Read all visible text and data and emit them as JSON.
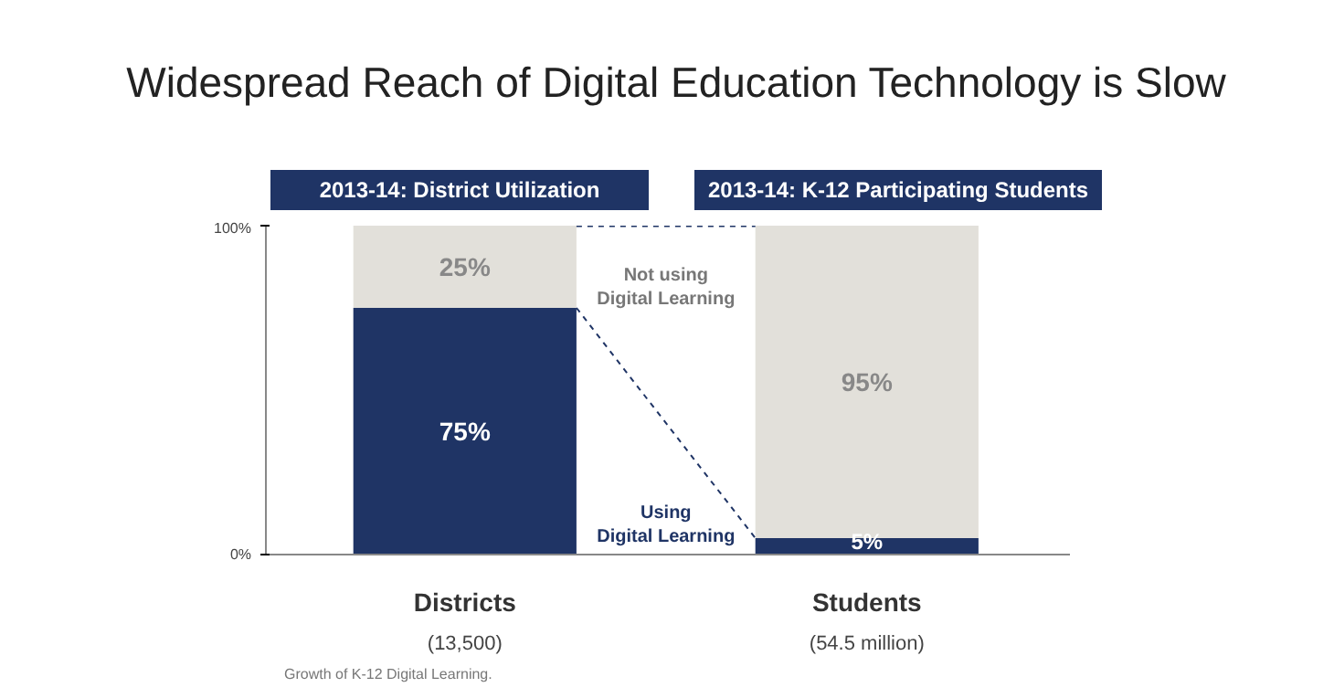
{
  "chart_data": {
    "type": "bar",
    "stacked": true,
    "title": "Widespread Reach of Digital Education Technology is Slow",
    "categories": [
      "Districts",
      "Students"
    ],
    "series": [
      {
        "name": "Using Digital Learning",
        "color": "#1f3465",
        "values": [
          75,
          5
        ],
        "value_labels": [
          "75%",
          "5%"
        ]
      },
      {
        "name": "Not using Digital Learning",
        "color": "#e2e0da",
        "values": [
          25,
          95
        ],
        "value_labels": [
          "25%",
          "95%"
        ]
      }
    ],
    "ylim": [
      0,
      100
    ],
    "yticks": [
      {
        "value": 0,
        "label": "0%"
      },
      {
        "value": 100,
        "label": "100%"
      }
    ],
    "annotations": [
      "2013-14: District Utilization",
      "2013-14: K-12 Participating Students",
      "(13,500)",
      "(54.5 million)",
      "Growth of K-12 Digital Learning."
    ]
  }
}
